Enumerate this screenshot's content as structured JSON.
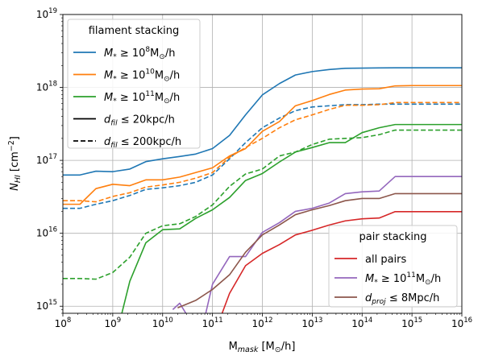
{
  "chart_data": {
    "type": "line",
    "xscale": "log",
    "yscale": "log",
    "xlim": [
      100000000.0,
      1e+16
    ],
    "ylim": [
      800000000000000.0,
      1e+19
    ],
    "grid": true,
    "xlabel": "M_mask [M⊙/h]",
    "ylabel": "N_HI [cm⁻²]",
    "x_ticks": [
      100000000.0,
      1000000000.0,
      10000000000.0,
      100000000000.0,
      1000000000000.0,
      10000000000000.0,
      100000000000000.0,
      1000000000000000.0,
      1e+16
    ],
    "x_tick_labels": [
      {
        "base": "10",
        "exp": "8"
      },
      {
        "base": "10",
        "exp": "9"
      },
      {
        "base": "10",
        "exp": "10"
      },
      {
        "base": "10",
        "exp": "11"
      },
      {
        "base": "10",
        "exp": "12"
      },
      {
        "base": "10",
        "exp": "13"
      },
      {
        "base": "10",
        "exp": "14"
      },
      {
        "base": "10",
        "exp": "15"
      },
      {
        "base": "10",
        "exp": "16"
      }
    ],
    "y_ticks": [
      1000000000000000.0,
      1e+16,
      1e+17,
      1e+18,
      1e+19
    ],
    "y_tick_labels": [
      {
        "base": "10",
        "exp": "15"
      },
      {
        "base": "10",
        "exp": "16"
      },
      {
        "base": "10",
        "exp": "17"
      },
      {
        "base": "10",
        "exp": "18"
      },
      {
        "base": "10",
        "exp": "19"
      }
    ],
    "legends": [
      {
        "title": "filament stacking",
        "position": "upper-left",
        "entries": [
          {
            "label": "M* ≥ 10^8 M⊙/h",
            "color": "#1f77b4",
            "style": "solid"
          },
          {
            "label": "M* ≥ 10^10 M⊙/h",
            "color": "#ff7f0e",
            "style": "solid"
          },
          {
            "label": "M* ≥ 10^11 M⊙/h",
            "color": "#2ca02c",
            "style": "solid"
          },
          {
            "label": "d_fil ≤ 20kpc/h",
            "color": "#000000",
            "style": "solid"
          },
          {
            "label": "d_fil ≤ 200kpc/h",
            "color": "#000000",
            "style": "dashed"
          }
        ]
      },
      {
        "title": "pair stacking",
        "position": "lower-right",
        "entries": [
          {
            "label": "all pairs",
            "color": "#d62728",
            "style": "solid"
          },
          {
            "label": "M* ≥ 10^11 M⊙/h",
            "color": "#9467bd",
            "style": "solid"
          },
          {
            "label": "d_proj ≤ 8Mpc/h",
            "color": "#8c564b",
            "style": "solid"
          }
        ]
      }
    ],
    "series": [
      {
        "color": "#1f77b4",
        "style": "solid",
        "x": [
          100000000.0,
          220000000.0,
          460000000.0,
          1000000000.0,
          2200000000.0,
          4600000000.0,
          10000000000.0,
          22000000000.0,
          46000000000.0,
          100000000000.0,
          220000000000.0,
          460000000000.0,
          1000000000000.0,
          2200000000000.0,
          4600000000000.0,
          10000000000000.0,
          22000000000000.0,
          46000000000000.0,
          100000000000000.0,
          220000000000000.0,
          460000000000000.0,
          1000000000000000.0,
          2200000000000000.0,
          4600000000000000.0,
          1e+16
        ],
        "y": [
          6.3e+16,
          6.3e+16,
          7.1e+16,
          7e+16,
          7.6e+16,
          9.6e+16,
          1.05e+17,
          1.13e+17,
          1.22e+17,
          1.45e+17,
          2.2e+17,
          4.2e+17,
          7.9e+17,
          1.13e+18,
          1.48e+18,
          1.65e+18,
          1.76e+18,
          1.83e+18,
          1.84e+18,
          1.85e+18,
          1.86e+18,
          1.86e+18,
          1.86e+18,
          1.86e+18,
          1.86e+18
        ]
      },
      {
        "color": "#1f77b4",
        "style": "dashed",
        "x": [
          100000000.0,
          220000000.0,
          460000000.0,
          1000000000.0,
          2200000000.0,
          4600000000.0,
          10000000000.0,
          22000000000.0,
          46000000000.0,
          100000000000.0,
          220000000000.0,
          460000000000.0,
          1000000000000.0,
          2200000000000.0,
          4600000000000.0,
          10000000000000.0,
          22000000000000.0,
          46000000000000.0,
          100000000000000.0,
          220000000000000.0,
          460000000000000.0,
          1000000000000000.0,
          2200000000000000.0,
          4600000000000000.0,
          1e+16
        ],
        "y": [
          2.2e+16,
          2.2e+16,
          2.5e+16,
          2.8e+16,
          3.3e+16,
          4e+16,
          4.2e+16,
          4.5e+16,
          5e+16,
          6.3e+16,
          1.05e+17,
          1.75e+17,
          2.8e+17,
          3.8e+17,
          4.8e+17,
          5.4e+17,
          5.6e+17,
          5.8e+17,
          5.8e+17,
          5.9e+17,
          5.9e+17,
          5.9e+17,
          5.9e+17,
          5.9e+17,
          5.9e+17
        ]
      },
      {
        "color": "#ff7f0e",
        "style": "solid",
        "x": [
          100000000.0,
          220000000.0,
          460000000.0,
          1000000000.0,
          2200000000.0,
          4600000000.0,
          10000000000.0,
          22000000000.0,
          46000000000.0,
          100000000000.0,
          220000000000.0,
          460000000000.0,
          1000000000000.0,
          2200000000000.0,
          4600000000000.0,
          10000000000000.0,
          22000000000000.0,
          46000000000000.0,
          100000000000000.0,
          220000000000000.0,
          460000000000000.0,
          1000000000000000.0,
          2200000000000000.0,
          4600000000000000.0,
          1e+16
        ],
        "y": [
          2.5e+16,
          2.5e+16,
          4.1e+16,
          4.7e+16,
          4.5e+16,
          5.4e+16,
          5.4e+16,
          5.9e+16,
          6.8e+16,
          7.9e+16,
          1.15e+17,
          1.45e+17,
          2.5e+17,
          3.4e+17,
          5.6e+17,
          6.6e+17,
          8e+17,
          9.2e+17,
          9.5e+17,
          9.6e+17,
          1.05e+18,
          1.06e+18,
          1.06e+18,
          1.06e+18,
          1.06e+18
        ]
      },
      {
        "color": "#ff7f0e",
        "style": "dashed",
        "x": [
          100000000.0,
          220000000.0,
          460000000.0,
          1000000000.0,
          2200000000.0,
          4600000000.0,
          10000000000.0,
          22000000000.0,
          46000000000.0,
          100000000000.0,
          220000000000.0,
          460000000000.0,
          1000000000000.0,
          2200000000000.0,
          4600000000000.0,
          10000000000000.0,
          22000000000000.0,
          46000000000000.0,
          100000000000000.0,
          220000000000000.0,
          460000000000000.0,
          1000000000000000.0,
          2200000000000000.0,
          4600000000000000.0,
          1e+16
        ],
        "y": [
          2.8e+16,
          2.8e+16,
          2.7e+16,
          3.2e+16,
          3.6e+16,
          4.3e+16,
          4.6e+16,
          5e+16,
          5.7e+16,
          6.8e+16,
          1.1e+17,
          1.5e+17,
          2e+17,
          2.8e+17,
          3.6e+17,
          4.2e+17,
          5e+17,
          5.7e+17,
          5.7e+17,
          5.8e+17,
          6.2e+17,
          6.2e+17,
          6.2e+17,
          6.2e+17,
          6.2e+17
        ]
      },
      {
        "color": "#2ca02c",
        "style": "solid",
        "x": [
          1450000000.0,
          2200000000.0,
          4600000000.0,
          10000000000.0,
          22000000000.0,
          46000000000.0,
          100000000000.0,
          220000000000.0,
          460000000000.0,
          1000000000000.0,
          2200000000000.0,
          4600000000000.0,
          10000000000000.0,
          22000000000000.0,
          46000000000000.0,
          100000000000000.0,
          220000000000000.0,
          460000000000000.0,
          1000000000000000.0,
          2200000000000000.0,
          4600000000000000.0,
          1e+16
        ],
        "y": [
          700000000000000.0,
          2200000000000000.0,
          7400000000000000.0,
          1.12e+16,
          1.15e+16,
          1.6e+16,
          2.1e+16,
          3.1e+16,
          5.3e+16,
          6.6e+16,
          9.5e+16,
          1.3e+17,
          1.5e+17,
          1.75e+17,
          1.75e+17,
          2.4e+17,
          2.8e+17,
          3.1e+17,
          3.1e+17,
          3.1e+17,
          3.1e+17,
          3.1e+17
        ]
      },
      {
        "color": "#2ca02c",
        "style": "dashed",
        "x": [
          100000000.0,
          220000000.0,
          460000000.0,
          1000000000.0,
          2200000000.0,
          4600000000.0,
          10000000000.0,
          22000000000.0,
          46000000000.0,
          100000000000.0,
          220000000000.0,
          460000000000.0,
          1000000000000.0,
          2200000000000.0,
          4600000000000.0,
          10000000000000.0,
          22000000000000.0,
          46000000000000.0,
          100000000000000.0,
          220000000000000.0,
          460000000000000.0,
          1000000000000000.0,
          2200000000000000.0,
          4600000000000000.0,
          1e+16
        ],
        "y": [
          2400000000000000.0,
          2400000000000000.0,
          2350000000000000.0,
          2900000000000000.0,
          4700000000000000.0,
          1e+16,
          1.27e+16,
          1.35e+16,
          1.7e+16,
          2.45e+16,
          4.4e+16,
          6.5e+16,
          7.6e+16,
          1.15e+17,
          1.3e+17,
          1.65e+17,
          1.95e+17,
          2e+17,
          2.05e+17,
          2.25e+17,
          2.6e+17,
          2.6e+17,
          2.6e+17,
          2.6e+17,
          2.6e+17
        ]
      },
      {
        "color": "#d62728",
        "style": "solid",
        "x": [
          145000000000.0,
          220000000000.0,
          460000000000.0,
          1000000000000.0,
          2200000000000.0,
          4600000000000.0,
          10000000000000.0,
          22000000000000.0,
          46000000000000.0,
          100000000000000.0,
          220000000000000.0,
          460000000000000.0,
          1000000000000000.0,
          2200000000000000.0,
          4600000000000000.0,
          1e+16
        ],
        "y": [
          700000000000000.0,
          1500000000000000.0,
          3600000000000000.0,
          5300000000000000.0,
          7000000000000000.0,
          9500000000000000.0,
          1.1e+16,
          1.3e+16,
          1.48e+16,
          1.58e+16,
          1.62e+16,
          1.98e+16,
          1.98e+16,
          1.98e+16,
          1.98e+16,
          1.98e+16
        ]
      },
      {
        "color": "#9467bd",
        "style": "solid",
        "x": [
          16000000000.0,
          22000000000.0,
          33000000000.0,
          46000000000.0,
          70000000000.0,
          100000000000.0,
          220000000000.0,
          460000000000.0,
          1000000000000.0,
          2200000000000.0,
          4600000000000.0,
          10000000000000.0,
          22000000000000.0,
          46000000000000.0,
          100000000000000.0,
          220000000000000.0,
          460000000000000.0,
          1000000000000000.0,
          2200000000000000.0,
          4600000000000000.0,
          1e+16
        ],
        "y": [
          900000000000000.0,
          1100000000000000.0,
          700000000000000.0,
          700000000000000.0,
          700000000000000.0,
          2000000000000000.0,
          4800000000000000.0,
          4800000000000000.0,
          1.03e+16,
          1.4e+16,
          2e+16,
          2.2e+16,
          2.6e+16,
          3.5e+16,
          3.7e+16,
          3.8e+16,
          6e+16,
          6e+16,
          6e+16,
          6e+16,
          6e+16
        ]
      },
      {
        "color": "#8c564b",
        "style": "solid",
        "x": [
          20000000000.0,
          46000000000.0,
          100000000000.0,
          220000000000.0,
          460000000000.0,
          1000000000000.0,
          2200000000000.0,
          4600000000000.0,
          10000000000000.0,
          22000000000000.0,
          46000000000000.0,
          100000000000000.0,
          220000000000000.0,
          460000000000000.0,
          1000000000000000.0,
          2200000000000000.0,
          4600000000000000.0,
          1e+16
        ],
        "y": [
          950000000000000.0,
          1200000000000000.0,
          1700000000000000.0,
          2700000000000000.0,
          5500000000000000.0,
          9500000000000000.0,
          1.3e+16,
          1.8e+16,
          2.1e+16,
          2.4e+16,
          2.8e+16,
          3e+16,
          3e+16,
          3.5e+16,
          3.5e+16,
          3.5e+16,
          3.5e+16,
          3.5e+16
        ]
      }
    ]
  }
}
